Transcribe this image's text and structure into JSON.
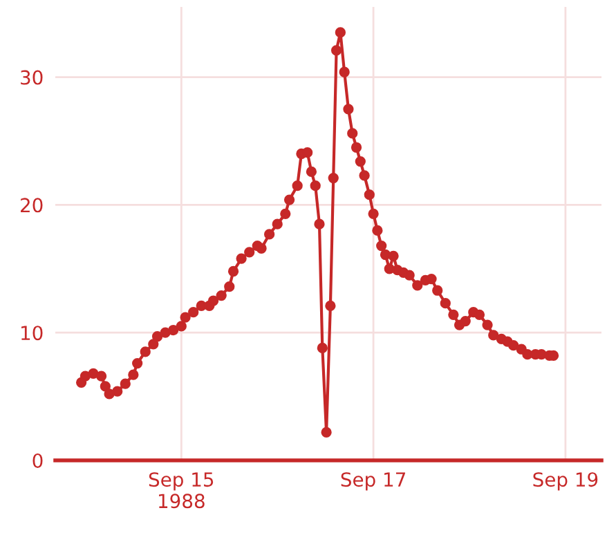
{
  "chart_data": {
    "type": "line",
    "marker": "circle",
    "line_style": "solid",
    "grid": true,
    "x": [
      "1988-09-13T23:00",
      "1988-09-14T00:00",
      "1988-09-14T02:00",
      "1988-09-14T04:00",
      "1988-09-14T05:00",
      "1988-09-14T06:00",
      "1988-09-14T08:00",
      "1988-09-14T10:00",
      "1988-09-14T12:00",
      "1988-09-14T13:00",
      "1988-09-14T15:00",
      "1988-09-14T17:00",
      "1988-09-14T18:00",
      "1988-09-14T20:00",
      "1988-09-14T22:00",
      "1988-09-15T00:00",
      "1988-09-15T01:00",
      "1988-09-15T03:00",
      "1988-09-15T05:00",
      "1988-09-15T07:00",
      "1988-09-15T08:00",
      "1988-09-15T10:00",
      "1988-09-15T12:00",
      "1988-09-15T13:00",
      "1988-09-15T15:00",
      "1988-09-15T17:00",
      "1988-09-15T19:00",
      "1988-09-15T20:00",
      "1988-09-15T22:00",
      "1988-09-16T00:00",
      "1988-09-16T02:00",
      "1988-09-16T03:00",
      "1988-09-16T05:00",
      "1988-09-16T06:00",
      "1988-09-16T07:30",
      "1988-09-16T08:30",
      "1988-09-16T09:30",
      "1988-09-16T10:30",
      "1988-09-16T11:15",
      "1988-09-16T12:15",
      "1988-09-16T13:15",
      "1988-09-16T14:00",
      "1988-09-16T14:45",
      "1988-09-16T15:45",
      "1988-09-16T16:45",
      "1988-09-16T17:45",
      "1988-09-16T18:45",
      "1988-09-16T19:45",
      "1988-09-16T20:45",
      "1988-09-16T21:45",
      "1988-09-16T23:00",
      "1988-09-17T00:00",
      "1988-09-17T01:00",
      "1988-09-17T02:00",
      "1988-09-17T03:00",
      "1988-09-17T04:00",
      "1988-09-17T05:00",
      "1988-09-17T06:00",
      "1988-09-17T07:30",
      "1988-09-17T09:00",
      "1988-09-17T11:00",
      "1988-09-17T13:00",
      "1988-09-17T14:30",
      "1988-09-17T16:00",
      "1988-09-17T18:00",
      "1988-09-17T20:00",
      "1988-09-17T21:30",
      "1988-09-17T23:00",
      "1988-09-18T01:00",
      "1988-09-18T02:30",
      "1988-09-18T04:30",
      "1988-09-18T06:00",
      "1988-09-18T08:00",
      "1988-09-18T09:30",
      "1988-09-18T11:00",
      "1988-09-18T13:00",
      "1988-09-18T14:30",
      "1988-09-18T16:30",
      "1988-09-18T18:00",
      "1988-09-18T20:00",
      "1988-09-18T21:00"
    ],
    "series": [
      {
        "color": "#c62828",
        "values": [
          6.1,
          6.6,
          6.8,
          6.6,
          5.8,
          5.2,
          5.4,
          6.0,
          6.7,
          7.6,
          8.5,
          9.1,
          9.7,
          10.0,
          10.2,
          10.5,
          11.2,
          11.6,
          12.1,
          12.1,
          12.5,
          12.9,
          13.6,
          14.8,
          15.8,
          16.3,
          16.8,
          16.6,
          17.7,
          18.5,
          19.3,
          20.4,
          21.5,
          24.0,
          24.1,
          22.6,
          21.5,
          18.5,
          8.8,
          2.2,
          12.1,
          22.1,
          32.1,
          33.5,
          30.4,
          27.5,
          25.6,
          24.5,
          23.4,
          22.3,
          20.8,
          19.3,
          18.0,
          16.8,
          16.1,
          15.0,
          16.0,
          14.9,
          14.7,
          14.5,
          13.7,
          14.1,
          14.2,
          13.3,
          12.3,
          11.4,
          10.6,
          10.9,
          11.6,
          11.4,
          10.6,
          9.8,
          9.5,
          9.3,
          9.0,
          8.7,
          8.3,
          8.3,
          8.3,
          8.2,
          8.2
        ]
      }
    ],
    "xlim": [
      "1988-09-13T16:30",
      "1988-09-19T09:00"
    ],
    "xticks": [
      {
        "value": "1988-09-15",
        "label": "Sep 15\n1988"
      },
      {
        "value": "1988-09-17",
        "label": "Sep 17"
      },
      {
        "value": "1988-09-19",
        "label": "Sep 19"
      }
    ],
    "ylim": [
      0,
      35.5
    ],
    "yticks": [
      0,
      10,
      20,
      30
    ]
  }
}
